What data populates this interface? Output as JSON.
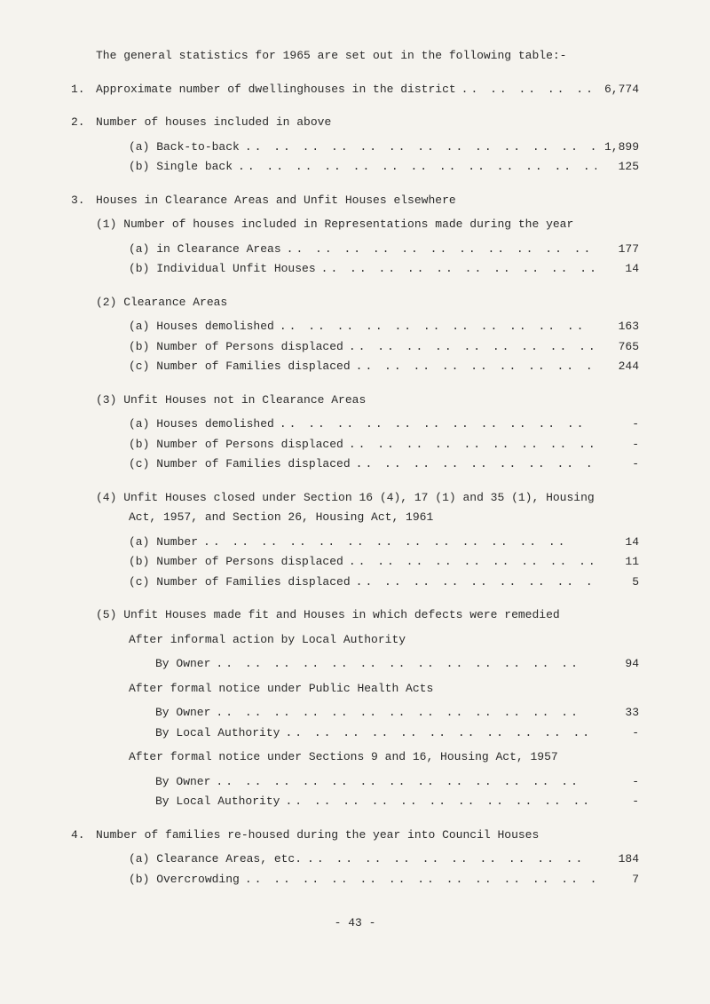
{
  "heading": "The general statistics for 1965 are set out in the following table:-",
  "item1": {
    "num": "1.",
    "label": "Approximate number of dwellinghouses in the district",
    "value": "6,774"
  },
  "item2": {
    "num": "2.",
    "label": "Number of houses included in above",
    "sub": {
      "a": {
        "label": "(a) Back-to-back",
        "value": "1,899"
      },
      "b": {
        "label": "(b) Single back",
        "value": "125"
      }
    }
  },
  "item3": {
    "num": "3.",
    "label": "Houses in Clearance Areas and Unfit Houses elsewhere",
    "s1": {
      "head": "(1) Number of houses included in Representations made during the year",
      "a": {
        "label": "(a) in Clearance Areas",
        "value": "177"
      },
      "b": {
        "label": "(b) Individual Unfit Houses",
        "value": "14"
      }
    },
    "s2": {
      "head": "(2) Clearance Areas",
      "a": {
        "label": "(a) Houses demolished",
        "value": "163"
      },
      "b": {
        "label": "(b) Number of Persons displaced",
        "value": "765"
      },
      "c": {
        "label": "(c) Number of Families displaced",
        "value": "244"
      }
    },
    "s3": {
      "head": "(3) Unfit Houses not in Clearance Areas",
      "a": {
        "label": "(a) Houses demolished",
        "value": "-"
      },
      "b": {
        "label": "(b) Number of Persons displaced",
        "value": "-"
      },
      "c": {
        "label": "(c) Number of Families displaced",
        "value": "-"
      }
    },
    "s4": {
      "head1": "(4) Unfit Houses closed under Section 16 (4), 17 (1) and 35 (1), Housing",
      "head2": "Act, 1957, and Section 26, Housing Act, 1961",
      "a": {
        "label": "(a) Number",
        "value": "14"
      },
      "b": {
        "label": "(b) Number of Persons displaced",
        "value": "11"
      },
      "c": {
        "label": "(c) Number of Families displaced",
        "value": "5"
      }
    },
    "s5": {
      "head": "(5) Unfit Houses made fit and Houses in which defects were remedied",
      "after1": "After informal action by Local Authority",
      "byowner1": {
        "label": "By Owner",
        "value": "94"
      },
      "after2": "After formal notice under Public Health Acts",
      "byowner2": {
        "label": "By Owner",
        "value": "33"
      },
      "bylocal2": {
        "label": "By Local Authority",
        "value": "-"
      },
      "after3": "After formal notice under Sections 9 and 16, Housing Act, 1957",
      "byowner3": {
        "label": "By Owner",
        "value": "-"
      },
      "bylocal3": {
        "label": "By Local Authority",
        "value": "-"
      }
    }
  },
  "item4": {
    "num": "4.",
    "label": "Number of families re-housed during the year into Council Houses",
    "a": {
      "label": "(a) Clearance Areas, etc.",
      "value": "184"
    },
    "b": {
      "label": "(b) Overcrowding",
      "value": "7"
    }
  },
  "pagenum": "- 43 -",
  "dotfill": ".. .. .. .. .. .. .. .. .. .. .. .. .."
}
